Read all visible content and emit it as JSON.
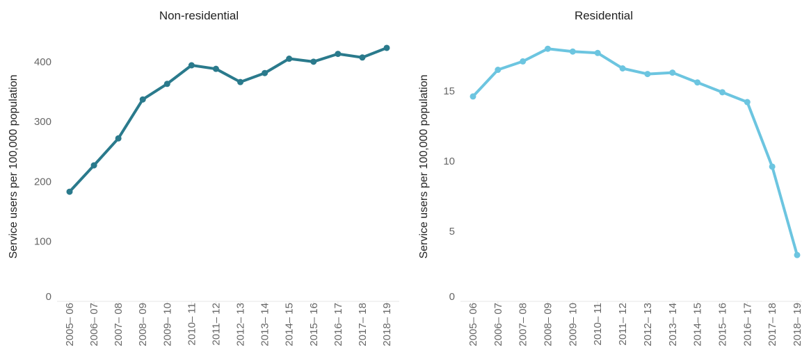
{
  "chart_data": [
    {
      "type": "line",
      "title": "Non-residential",
      "xlabel": "",
      "ylabel": "Service users per 100,000 population",
      "categories": [
        "2005– 06",
        "2006– 07",
        "2007– 08",
        "2008– 09",
        "2009– 10",
        "2010– 11",
        "2011– 12",
        "2012– 13",
        "2013– 14",
        "2014– 15",
        "2015– 16",
        "2016– 17",
        "2017– 18",
        "2018– 19"
      ],
      "yticks": [
        0,
        100,
        200,
        300,
        400
      ],
      "ylim": [
        0,
        445
      ],
      "grid": false,
      "color": "#2a7a8c",
      "series": [
        {
          "values": [
            183,
            227,
            272,
            337,
            363,
            394,
            388,
            366,
            381,
            405,
            400,
            413,
            407,
            423
          ]
        }
      ]
    },
    {
      "type": "line",
      "title": "Residential",
      "xlabel": "",
      "ylabel": "Service users per 100,000 population",
      "categories": [
        "2005– 06",
        "2006– 07",
        "2007– 08",
        "2008– 09",
        "2009– 10",
        "2010– 11",
        "2011– 12",
        "2012– 13",
        "2013– 14",
        "2014– 15",
        "2015– 16",
        "2016– 17",
        "2017– 18",
        "2018– 19"
      ],
      "yticks": [
        0,
        5,
        10,
        15
      ],
      "ylim": [
        0,
        19
      ],
      "grid": false,
      "color": "#6cc5e0",
      "series": [
        {
          "values": [
            14.6,
            16.5,
            17.1,
            18.0,
            17.8,
            17.7,
            16.6,
            16.2,
            16.3,
            15.6,
            14.9,
            14.2,
            9.6,
            3.3
          ]
        }
      ]
    }
  ]
}
